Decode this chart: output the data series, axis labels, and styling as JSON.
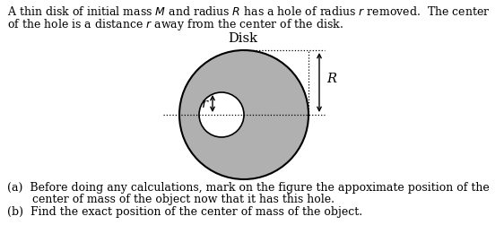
{
  "fig_width": 5.62,
  "fig_height": 2.8,
  "dpi": 100,
  "disk_color": "#b0b0b0",
  "disk_edge_color": "#000000",
  "hole_color": "#ffffff",
  "disk_label": "Disk",
  "R_label": "R",
  "r_label": "r",
  "dotted_line_color": "#000000",
  "arrow_color": "#000000",
  "text_fontsize": 9.0,
  "label_fontsize": 10.5,
  "line1": "A thin disk of initial mass $M$ and radius $R$ has a hole of radius $r$ removed.  The center",
  "line2": "of the hole is a distance $r$ away from the center of the disk.",
  "qa1": "(a)  Before doing any calculations, mark on the figure the appoximate position of the",
  "qa2": "       center of mass of the object now that it has this hole.",
  "qb": "(b)  Find the exact position of the center of mass of the object."
}
